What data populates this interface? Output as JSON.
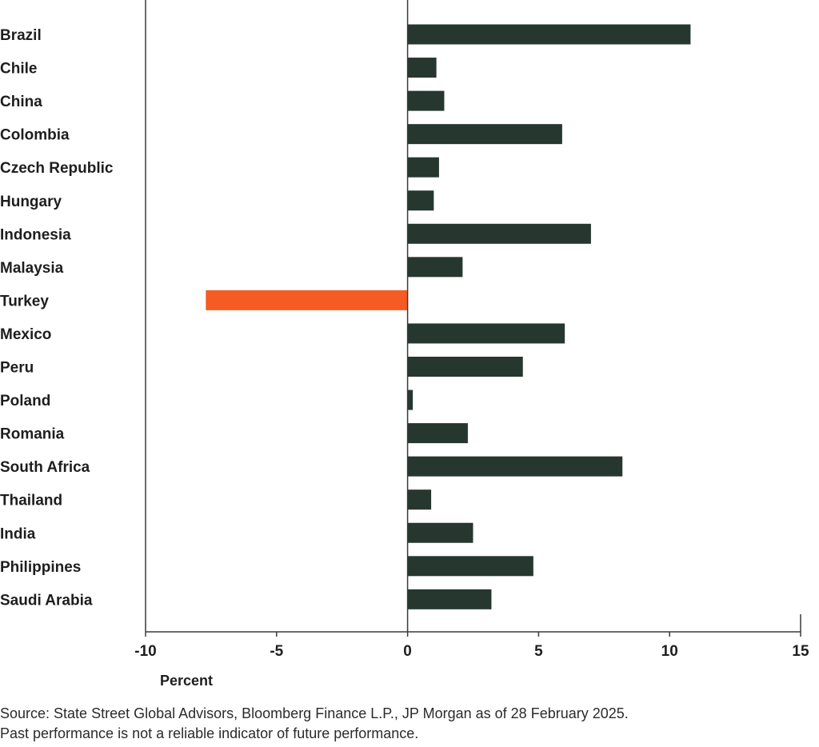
{
  "chart_data": {
    "type": "bar",
    "orientation": "horizontal",
    "categories": [
      "Brazil",
      "Chile",
      "China",
      "Colombia",
      "Czech Republic",
      "Hungary",
      "Indonesia",
      "Malaysia",
      "Turkey",
      "Mexico",
      "Peru",
      "Poland",
      "Romania",
      "South Africa",
      "Thailand",
      "India",
      "Philippines",
      "Saudi Arabia"
    ],
    "values": [
      10.8,
      1.1,
      1.4,
      5.9,
      1.2,
      1.0,
      7.0,
      2.1,
      -7.7,
      6.0,
      4.4,
      0.2,
      2.3,
      8.2,
      0.9,
      2.5,
      4.8,
      3.2
    ],
    "xlim": [
      -10,
      15
    ],
    "xticks": [
      -10,
      -5,
      0,
      5,
      10,
      15
    ],
    "xtick_labels": [
      "-10",
      "-5",
      "0",
      "5",
      "10",
      "15"
    ],
    "xlabel": "Percent",
    "ylabel": "",
    "title": "",
    "grid": false,
    "colors": {
      "default": "#26372f",
      "highlight": "#f55b22",
      "axis": "#3a3a3a"
    },
    "highlight_category": "Turkey"
  },
  "source": {
    "line1": "Source: State Street Global Advisors, Bloomberg Finance L.P., JP Morgan as of 28 February 2025.",
    "line2": "Past performance is not a reliable indicator of future performance."
  }
}
